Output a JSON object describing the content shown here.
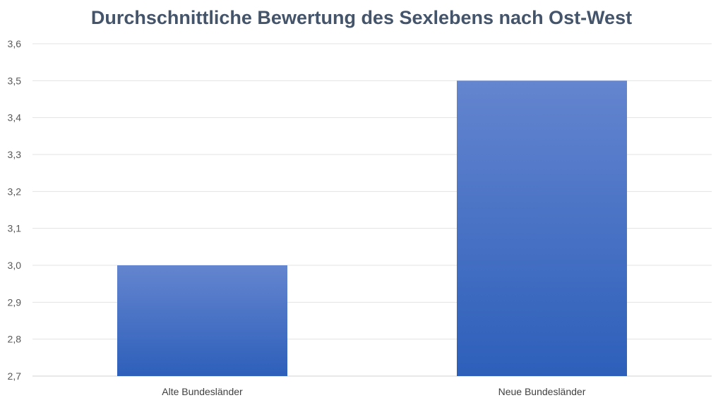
{
  "chart_data": {
    "type": "bar",
    "title": "Durchschnittliche Bewertung des Sexlebens nach Ost-West",
    "categories": [
      "Alte Bundesländer",
      "Neue Bundesländer"
    ],
    "values": [
      3.0,
      3.5
    ],
    "xlabel": "",
    "ylabel": "",
    "ylim": [
      2.7,
      3.6
    ],
    "yticks": [
      "2,7",
      "2,8",
      "2,9",
      "3,0",
      "3,1",
      "3,2",
      "3,3",
      "3,4",
      "3,5",
      "3,6"
    ],
    "grid": true,
    "legend": "none",
    "colors": {
      "bar_top": "#6485cf",
      "bar_bottom": "#2d5fba"
    }
  }
}
